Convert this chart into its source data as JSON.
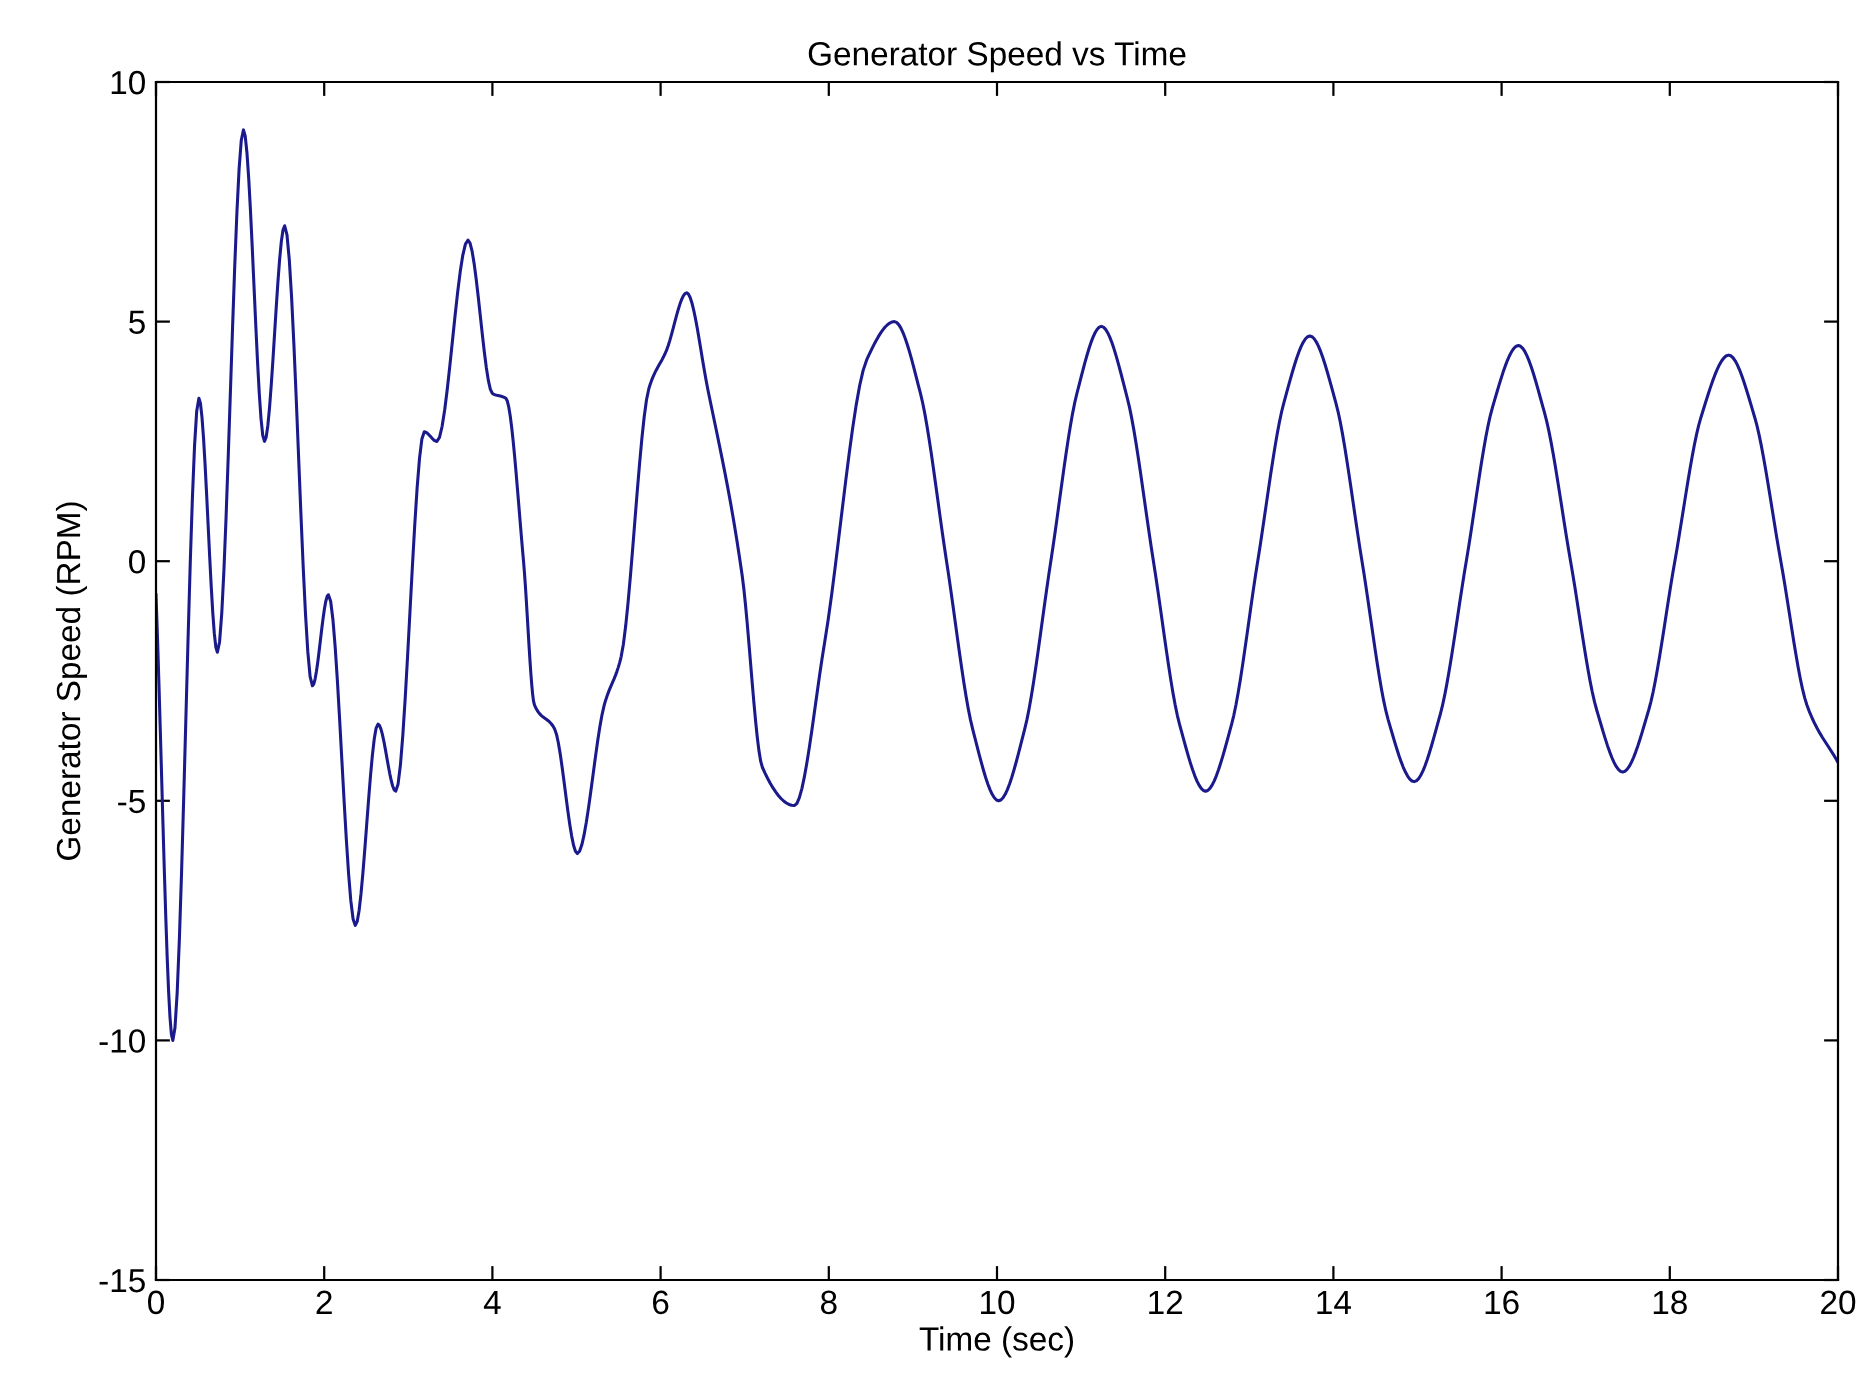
{
  "chart_data": {
    "type": "line",
    "title": "Generator Speed vs Time",
    "xlabel": "Time (sec)",
    "ylabel": "Generator Speed (RPM)",
    "xlim": [
      0,
      20
    ],
    "ylim": [
      -15,
      10
    ],
    "xticks": [
      0,
      2,
      4,
      6,
      8,
      10,
      12,
      14,
      16,
      18,
      20
    ],
    "yticks": [
      -15,
      -10,
      -5,
      0,
      5,
      10
    ],
    "grid": false,
    "marker": "none",
    "line_style": "solid",
    "series": [
      {
        "color": "#1a1a8c",
        "x": [
          0,
          0.2,
          0.51,
          0.73,
          1.04,
          1.29,
          1.53,
          1.86,
          2.05,
          2.37,
          2.64,
          2.85,
          3.19,
          3.34,
          3.71,
          4.0,
          4.16,
          4.37,
          4.5,
          4.74,
          5.01,
          5.33,
          5.53,
          5.86,
          6.07,
          6.31,
          6.56,
          6.97,
          7.21,
          7.59,
          7.95,
          8.45,
          8.78,
          9.09,
          9.4,
          9.71,
          10.02,
          10.33,
          10.64,
          10.95,
          11.24,
          11.55,
          11.86,
          12.17,
          12.48,
          12.79,
          13.1,
          13.41,
          13.72,
          14.03,
          14.34,
          14.65,
          14.96,
          15.27,
          15.58,
          15.89,
          16.2,
          16.51,
          16.82,
          17.13,
          17.44,
          17.75,
          18.06,
          18.37,
          18.7,
          19.01,
          19.32,
          19.63,
          20.0
        ],
        "values": [
          -0.7,
          -10.0,
          3.4,
          -1.9,
          9.0,
          2.5,
          7.0,
          -2.6,
          -0.7,
          -7.6,
          -3.4,
          -4.8,
          2.7,
          2.5,
          6.7,
          3.5,
          3.4,
          0.0,
          -3.0,
          -3.5,
          -6.1,
          -3.0,
          -2.0,
          3.6,
          4.4,
          5.6,
          3.6,
          -0.3,
          -4.3,
          -5.1,
          -1.7,
          4.2,
          5.0,
          3.5,
          0.0,
          -3.5,
          -5.0,
          -3.5,
          0.0,
          3.5,
          4.9,
          3.4,
          0.0,
          -3.4,
          -4.8,
          -3.4,
          0.0,
          3.3,
          4.7,
          3.3,
          0.0,
          -3.3,
          -4.6,
          -3.2,
          0.0,
          3.2,
          4.5,
          3.1,
          0.0,
          -3.1,
          -4.4,
          -3.1,
          0.0,
          3.0,
          4.3,
          3.0,
          0.0,
          -3.0,
          -4.2
        ]
      }
    ]
  }
}
